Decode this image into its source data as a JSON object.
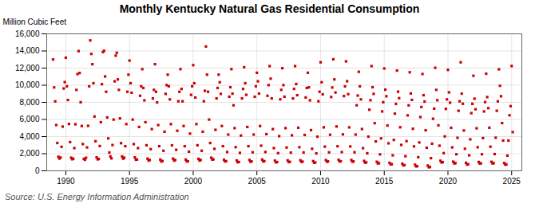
{
  "chart_data": {
    "type": "scatter",
    "title": "Monthly Kentucky Natural Gas Residential Consumption",
    "ylabel": "Million Cubic Feet",
    "caption": "Source: U.S. Energy Information Administration",
    "color": "#cc0000",
    "marker": "square",
    "grid": true,
    "xlim": [
      1988.5,
      2025.8
    ],
    "ylim": [
      0,
      16000
    ],
    "xticks": [
      1990,
      1995,
      2000,
      2005,
      2010,
      2015,
      2020,
      2025
    ],
    "yticks": [
      0,
      {
        "value": 2000,
        "label": "2,000"
      },
      {
        "value": 4000,
        "label": "4,000"
      },
      {
        "value": 6000,
        "label": "6,000"
      },
      {
        "value": 8000,
        "label": "8,000"
      },
      {
        "value": 10000,
        "label": "10,000"
      },
      {
        "value": 12000,
        "label": "12,000"
      },
      {
        "value": 14000,
        "label": "14,000"
      },
      {
        "value": 16000,
        "label": "16,000"
      }
    ],
    "x": [
      1989,
      1989.0833,
      1989.1667,
      1989.25,
      1989.3333,
      1989.4167,
      1989.5,
      1989.5833,
      1989.6667,
      1989.75,
      1989.8333,
      1989.9167,
      1990,
      1990.0833,
      1990.1667,
      1990.25,
      1990.3333,
      1990.4167,
      1990.5,
      1990.5833,
      1990.6667,
      1990.75,
      1990.8333,
      1990.9167,
      1991,
      1991.0833,
      1991.1667,
      1991.25,
      1991.3333,
      1991.4167,
      1991.5,
      1991.5833,
      1991.6667,
      1991.75,
      1991.8333,
      1991.9167,
      1992,
      1992.0833,
      1992.1667,
      1992.25,
      1992.3333,
      1992.4167,
      1992.5,
      1992.5833,
      1992.6667,
      1992.75,
      1992.8333,
      1992.9167,
      1993,
      1993.0833,
      1993.1667,
      1993.25,
      1993.3333,
      1993.4167,
      1993.5,
      1993.5833,
      1993.6667,
      1993.75,
      1993.8333,
      1993.9167,
      1994,
      1994.0833,
      1994.1667,
      1994.25,
      1994.3333,
      1994.4167,
      1994.5,
      1994.5833,
      1994.6667,
      1994.75,
      1994.8333,
      1994.9167,
      1995,
      1995.0833,
      1995.1667,
      1995.25,
      1995.3333,
      1995.4167,
      1995.5,
      1995.5833,
      1995.6667,
      1995.75,
      1995.8333,
      1995.9167,
      1996,
      1996.0833,
      1996.1667,
      1996.25,
      1996.3333,
      1996.4167,
      1996.5,
      1996.5833,
      1996.6667,
      1996.75,
      1996.8333,
      1996.9167,
      1997,
      1997.0833,
      1997.1667,
      1997.25,
      1997.3333,
      1997.4167,
      1997.5,
      1997.5833,
      1997.6667,
      1997.75,
      1997.8333,
      1997.9167,
      1998,
      1998.0833,
      1998.1667,
      1998.25,
      1998.3333,
      1998.4167,
      1998.5,
      1998.5833,
      1998.6667,
      1998.75,
      1998.8333,
      1998.9167,
      1999,
      1999.0833,
      1999.1667,
      1999.25,
      1999.3333,
      1999.4167,
      1999.5,
      1999.5833,
      1999.6667,
      1999.75,
      1999.8333,
      1999.9167,
      2000,
      2000.0833,
      2000.1667,
      2000.25,
      2000.3333,
      2000.4167,
      2000.5,
      2000.5833,
      2000.6667,
      2000.75,
      2000.8333,
      2000.9167,
      2001,
      2001.0833,
      2001.1667,
      2001.25,
      2001.3333,
      2001.4167,
      2001.5,
      2001.5833,
      2001.6667,
      2001.75,
      2001.8333,
      2001.9167,
      2002,
      2002.0833,
      2002.1667,
      2002.25,
      2002.3333,
      2002.4167,
      2002.5,
      2002.5833,
      2002.6667,
      2002.75,
      2002.8333,
      2002.9167,
      2003,
      2003.0833,
      2003.1667,
      2003.25,
      2003.3333,
      2003.4167,
      2003.5,
      2003.5833,
      2003.6667,
      2003.75,
      2003.8333,
      2003.9167,
      2004,
      2004.0833,
      2004.1667,
      2004.25,
      2004.3333,
      2004.4167,
      2004.5,
      2004.5833,
      2004.6667,
      2004.75,
      2004.8333,
      2004.9167,
      2005,
      2005.0833,
      2005.1667,
      2005.25,
      2005.3333,
      2005.4167,
      2005.5,
      2005.5833,
      2005.6667,
      2005.75,
      2005.8333,
      2005.9167,
      2006,
      2006.0833,
      2006.1667,
      2006.25,
      2006.3333,
      2006.4167,
      2006.5,
      2006.5833,
      2006.6667,
      2006.75,
      2006.8333,
      2006.9167,
      2007,
      2007.0833,
      2007.1667,
      2007.25,
      2007.3333,
      2007.4167,
      2007.5,
      2007.5833,
      2007.6667,
      2007.75,
      2007.8333,
      2007.9167,
      2008,
      2008.0833,
      2008.1667,
      2008.25,
      2008.3333,
      2008.4167,
      2008.5,
      2008.5833,
      2008.6667,
      2008.75,
      2008.8333,
      2008.9167,
      2009,
      2009.0833,
      2009.1667,
      2009.25,
      2009.3333,
      2009.4167,
      2009.5,
      2009.5833,
      2009.6667,
      2009.75,
      2009.8333,
      2009.9167,
      2010,
      2010.0833,
      2010.1667,
      2010.25,
      2010.3333,
      2010.4167,
      2010.5,
      2010.5833,
      2010.6667,
      2010.75,
      2010.8333,
      2010.9167,
      2011,
      2011.0833,
      2011.1667,
      2011.25,
      2011.3333,
      2011.4167,
      2011.5,
      2011.5833,
      2011.6667,
      2011.75,
      2011.8333,
      2011.9167,
      2012,
      2012.0833,
      2012.1667,
      2012.25,
      2012.3333,
      2012.4167,
      2012.5,
      2012.5833,
      2012.6667,
      2012.75,
      2012.8333,
      2012.9167,
      2013,
      2013.0833,
      2013.1667,
      2013.25,
      2013.3333,
      2013.4167,
      2013.5,
      2013.5833,
      2013.6667,
      2013.75,
      2013.8333,
      2013.9167,
      2014,
      2014.0833,
      2014.1667,
      2014.25,
      2014.3333,
      2014.4167,
      2014.5,
      2014.5833,
      2014.6667,
      2014.75,
      2014.8333,
      2014.9167,
      2015,
      2015.0833,
      2015.1667,
      2015.25,
      2015.3333,
      2015.4167,
      2015.5,
      2015.5833,
      2015.6667,
      2015.75,
      2015.8333,
      2015.9167,
      2016,
      2016.0833,
      2016.1667,
      2016.25,
      2016.3333,
      2016.4167,
      2016.5,
      2016.5833,
      2016.6667,
      2016.75,
      2016.8333,
      2016.9167,
      2017,
      2017.0833,
      2017.1667,
      2017.25,
      2017.3333,
      2017.4167,
      2017.5,
      2017.5833,
      2017.6667,
      2017.75,
      2017.8333,
      2017.9167,
      2018,
      2018.0833,
      2018.1667,
      2018.25,
      2018.3333,
      2018.4167,
      2018.5,
      2018.5833,
      2018.6667,
      2018.75,
      2018.8333,
      2018.9167,
      2019,
      2019.0833,
      2019.1667,
      2019.25,
      2019.3333,
      2019.4167,
      2019.5,
      2019.5833,
      2019.6667,
      2019.75,
      2019.8333,
      2019.9167,
      2020,
      2020.0833,
      2020.1667,
      2020.25,
      2020.3333,
      2020.4167,
      2020.5,
      2020.5833,
      2020.6667,
      2020.75,
      2020.8333,
      2020.9167,
      2021,
      2021.0833,
      2021.1667,
      2021.25,
      2021.3333,
      2021.4167,
      2021.5,
      2021.5833,
      2021.6667,
      2021.75,
      2021.8333,
      2021.9167,
      2022,
      2022.0833,
      2022.1667,
      2022.25,
      2022.3333,
      2022.4167,
      2022.5,
      2022.5833,
      2022.6667,
      2022.75,
      2022.8333,
      2022.9167,
      2023,
      2023.0833,
      2023.1667,
      2023.25,
      2023.3333,
      2023.4167,
      2023.5,
      2023.5833,
      2023.6667,
      2023.75,
      2023.8333,
      2023.9167,
      2024,
      2024.0833,
      2024.1667,
      2024.25,
      2024.3333,
      2024.4167,
      2024.5,
      2024.5833,
      2024.6667,
      2024.75,
      2024.8333,
      2024.9167,
      2025,
      2025.0833
    ],
    "values": [
      13007,
      9743,
      8113,
      5350,
      3254,
      1644,
      1437,
      1551,
      2803,
      5167,
      9619,
      10363,
      13212,
      9874,
      8272,
      5476,
      3356,
      1533,
      1354,
      1412,
      2654,
      5437,
      9452,
      11298,
      13987,
      11426,
      8012,
      5234,
      3126,
      1398,
      1287,
      1523,
      2734,
      5256,
      9876,
      15234,
      13654,
      12456,
      10234,
      6345,
      3456,
      1567,
      1345,
      1389,
      2897,
      5678,
      10123,
      13876,
      14023,
      11023,
      9234,
      6234,
      3789,
      2134,
      1678,
      1456,
      3012,
      5987,
      10456,
      13456,
      13789,
      10678,
      9456,
      6123,
      3234,
      1678,
      1423,
      1534,
      2876,
      5456,
      9234,
      11234,
      12876,
      10234,
      9123,
      5987,
      3123,
      1567,
      1298,
      1312,
      2654,
      5123,
      8765,
      9876,
      11876,
      9678,
      8234,
      5678,
      2987,
      1423,
      1198,
      1267,
      2534,
      4876,
      8456,
      9456,
      12456,
      9234,
      7987,
      5345,
      2876,
      1312,
      1087,
      1156,
      2345,
      4567,
      8987,
      10012,
      11234,
      9876,
      8345,
      5456,
      2976,
      1423,
      1198,
      1267,
      2456,
      4678,
      8123,
      9234,
      11876,
      9567,
      8123,
      5234,
      2876,
      1312,
      1087,
      1123,
      2234,
      4345,
      8876,
      9876,
      12345,
      10234,
      8567,
      5456,
      2987,
      1398,
      1198,
      1267,
      2345,
      4567,
      8123,
      9345,
      14523,
      11234,
      9234,
      5987,
      3245,
      1534,
      1312,
      1345,
      2567,
      4789,
      8456,
      9678,
      11234,
      10345,
      8987,
      5234,
      2876,
      1287,
      1098,
      1134,
      2198,
      4234,
      8654,
      9765,
      11876,
      9012,
      7654,
      4987,
      2765,
      1198,
      998,
      1034,
      2098,
      4123,
      8456,
      9567,
      12098,
      10234,
      8876,
      5123,
      2876,
      1267,
      1067,
      1098,
      2167,
      4234,
      8654,
      9876,
      11456,
      10456,
      9023,
      5234,
      2934,
      1312,
      1098,
      1134,
      2198,
      4287,
      8765,
      10012,
      12234,
      10765,
      8456,
      4876,
      2654,
      1187,
      987,
      1023,
      2067,
      4056,
      8345,
      9456,
      11987,
      10012,
      8654,
      4987,
      2723,
      1212,
      1023,
      1056,
      2123,
      4145,
      8456,
      9567,
      12234,
      10145,
      8834,
      5034,
      2756,
      1234,
      1045,
      1078,
      2145,
      4187,
      8567,
      9678,
      11456,
      9756,
      8234,
      4756,
      2578,
      1134,
      945,
      978,
      2034,
      3987,
      8123,
      9234,
      12678,
      10345,
      8934,
      5078,
      2823,
      1256,
      1067,
      1098,
      2156,
      4212,
      8623,
      9734,
      13034,
      10678,
      9145,
      5178,
      2867,
      1289,
      1089,
      1123,
      2189,
      4256,
      8734,
      9867,
      12789,
      10467,
      8956,
      5078,
      2845,
      1267,
      1067,
      1101,
      2167,
      4234,
      7656,
      8789,
      11567,
      9867,
      8345,
      4878,
      2645,
      1156,
      956,
      989,
      2045,
      3989,
      7134,
      8245,
      12234,
      9765,
      8987,
      5567,
      3434,
      1056,
      867,
      890,
      1923,
      3789,
      6934,
      8012,
      11956,
      9478,
      8712,
      5289,
      3212,
      934,
      745,
      767,
      1812,
      3612,
      6678,
      7812,
      11712,
      9245,
      8489,
      5089,
      3023,
      834,
      645,
      667,
      1712,
      3467,
      6478,
      7645,
      11512,
      9034,
      8289,
      4912,
      2856,
      712,
      523,
      545,
      1589,
      3312,
      6278,
      7456,
      11312,
      8834,
      8089,
      4734,
      2689,
      612,
      423,
      445,
      1478,
      3167,
      6078,
      7267,
      12034,
      9456,
      8245,
      5312,
      2934,
      1178,
      978,
      1012,
      2067,
      4023,
      7234,
      8345,
      11789,
      9167,
      7956,
      5023,
      2734,
      1067,
      867,
      898,
      1934,
      3856,
      7012,
      8123,
      12678,
      9012,
      7834,
      4712,
      2578,
      934,
      734,
      765,
      1812,
      3678,
      6734,
      7823,
      11098,
      8423,
      7189,
      4967,
      2756,
      1034,
      845,
      878,
      1934,
      3823,
      6934,
      8034,
      11345,
      8612,
      7323,
      5034,
      2812,
      1056,
      867,
      898,
      1956,
      3867,
      7012,
      8112,
      11856,
      9934,
      8712,
      5578,
      3534,
      912,
      723,
      745,
      1778,
      3534,
      6489,
      7556,
      12245,
      4523
    ]
  }
}
